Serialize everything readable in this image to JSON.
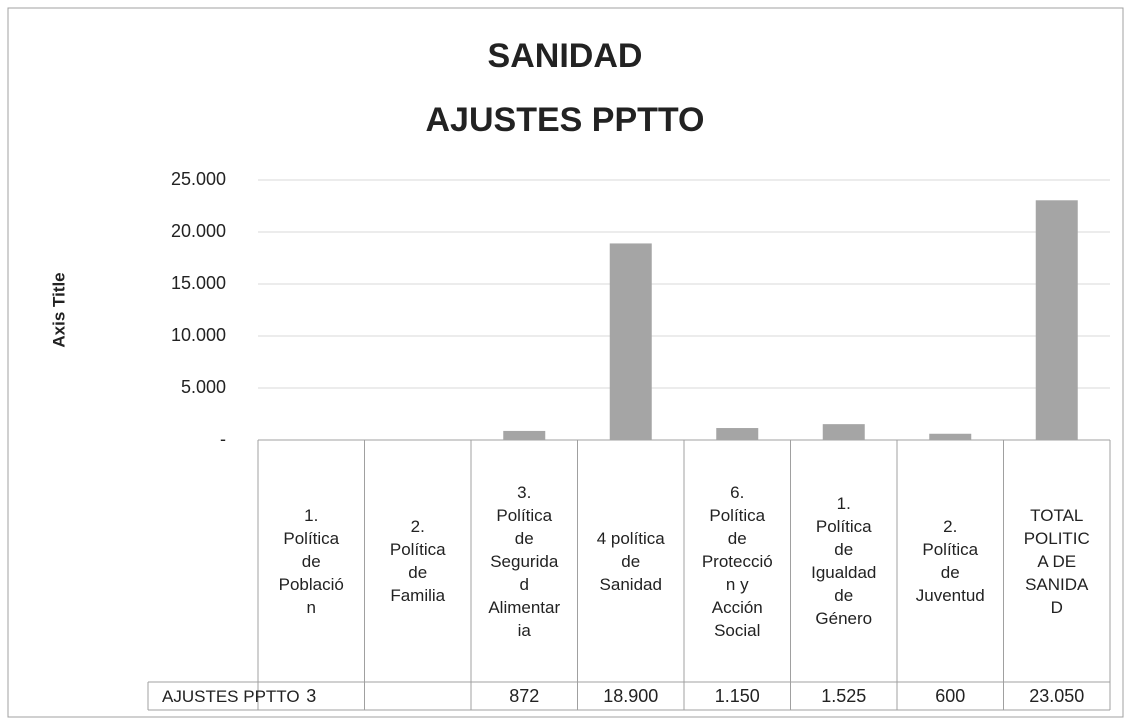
{
  "chart_data": {
    "type": "bar",
    "title": "SANIDAD",
    "subtitle": "AJUSTES PPTTO",
    "y_label": "Axis Title",
    "categories": [
      "1. Política de Población",
      "2. Política de Familia",
      "3. Política de Seguridad Alimentaria",
      "4 política de Sanidad",
      "6. Política de Protección y Acción Social",
      "1. Política de Igualdad de Género",
      "2. Política de Juventud",
      "TOTAL POLITICA DE SANIDAD"
    ],
    "series": [
      {
        "name": "AJUSTES PPTTO",
        "color": "#a5a5a5",
        "values": [
          3,
          null,
          872,
          18900,
          1150,
          1525,
          600,
          23050
        ],
        "value_labels": [
          "3",
          null,
          "872",
          "18.900",
          "1.150",
          "1.525",
          "600",
          "23.050"
        ]
      }
    ],
    "ylim": [
      0,
      25000
    ],
    "yticks": [
      {
        "value": 0,
        "label": "-"
      },
      {
        "value": 5000,
        "label": "5.000"
      },
      {
        "value": 10000,
        "label": "10.000"
      },
      {
        "value": 15000,
        "label": "15.000"
      },
      {
        "value": 20000,
        "label": "20.000"
      },
      {
        "value": 25000,
        "label": "25.000"
      }
    ],
    "grid": true
  }
}
